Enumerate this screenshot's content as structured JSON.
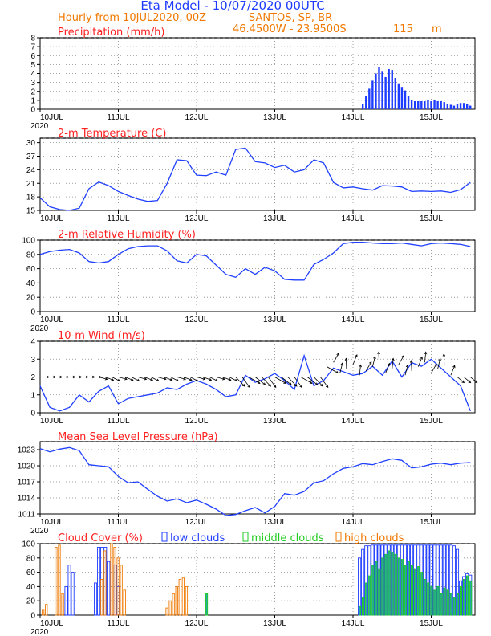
{
  "header": {
    "title": "Eta Model - 10/07/2020 00UTC",
    "subtitle_left": "Hourly from 10JUL2020, 00Z",
    "location": "SANTOS, SP, BR",
    "coords": "46.4500W - 23.9500S",
    "elevation": "115",
    "elevation_unit": "m"
  },
  "colors": {
    "title": "#1e3cff",
    "subtitle": "#f07800",
    "panel_title": "#ff2020",
    "line": "#2040ff",
    "bar_blue": "#1e3cff",
    "green": "#22cc22",
    "orange": "#f07800",
    "teal": "#009999"
  },
  "x_axis": {
    "day_labels": [
      "10JUL",
      "11JUL",
      "12JUL",
      "13JUL",
      "14JUL",
      "15JUL"
    ],
    "year_label": "2020"
  },
  "legend": {
    "cloud_low": "low clouds",
    "cloud_mid": "middle clouds",
    "cloud_high": "high clouds"
  },
  "chart_data": [
    {
      "type": "bar",
      "title": "Precipitation (mm/h)",
      "ylim": [
        0,
        8
      ],
      "yticks": [
        "0",
        "1",
        "2",
        "3",
        "4",
        "5",
        "6",
        "7",
        "8"
      ],
      "x": [
        99,
        100,
        101,
        102,
        103,
        104,
        105,
        106,
        107,
        108,
        109,
        110,
        111,
        112,
        113,
        114,
        115,
        116,
        117,
        118,
        119,
        120,
        121,
        122,
        123,
        124,
        125,
        126,
        127,
        128,
        129,
        130,
        131,
        132
      ],
      "values": [
        0.6,
        1.5,
        2.3,
        3.2,
        4.0,
        4.7,
        4.2,
        3.6,
        4.5,
        4.4,
        3.5,
        2.9,
        2.5,
        2.1,
        1.5,
        1.0,
        0.9,
        0.9,
        0.9,
        0.9,
        1.0,
        0.9,
        1.0,
        0.9,
        0.9,
        0.8,
        0.6,
        0.5,
        0.4,
        0.6,
        0.7,
        0.7,
        0.6,
        0.4
      ]
    },
    {
      "type": "line",
      "title": "2-m Temperature (C)",
      "ylim": [
        15,
        31
      ],
      "yticks": [
        "15",
        "18",
        "21",
        "24",
        "27",
        "30"
      ],
      "x": [
        0,
        3,
        6,
        9,
        12,
        15,
        18,
        21,
        24,
        27,
        30,
        33,
        36,
        39,
        42,
        45,
        48,
        51,
        54,
        57,
        60,
        63,
        66,
        69,
        72,
        75,
        78,
        81,
        84,
        87,
        90,
        93,
        96,
        99,
        102,
        105,
        108,
        111,
        114,
        117,
        120,
        123,
        126,
        129,
        132
      ],
      "values": [
        17.8,
        15.8,
        15.2,
        15.0,
        15.5,
        19.8,
        21.3,
        20.5,
        19.2,
        18.3,
        17.5,
        17.0,
        17.2,
        21.0,
        26.2,
        26.0,
        22.8,
        22.7,
        23.5,
        22.8,
        28.5,
        28.8,
        25.8,
        25.5,
        24.5,
        25.0,
        23.5,
        24.0,
        26.2,
        25.5,
        21.2,
        20.0,
        20.2,
        19.8,
        19.5,
        20.5,
        20.4,
        20.2,
        19.2,
        19.3,
        19.2,
        19.3,
        19.0,
        19.6,
        21.2
      ]
    },
    {
      "type": "line",
      "title": "2-m Relative Humidity (%)",
      "ylim": [
        0,
        100
      ],
      "yticks": [
        "0",
        "20",
        "40",
        "60",
        "80",
        "100"
      ],
      "x": [
        0,
        3,
        6,
        9,
        12,
        15,
        18,
        21,
        24,
        27,
        30,
        33,
        36,
        39,
        42,
        45,
        48,
        51,
        54,
        57,
        60,
        63,
        66,
        69,
        72,
        75,
        78,
        81,
        84,
        87,
        90,
        93,
        96,
        99,
        102,
        105,
        108,
        111,
        114,
        117,
        120,
        123,
        126,
        129,
        132
      ],
      "values": [
        80,
        84,
        86,
        87,
        82,
        70,
        68,
        70,
        80,
        88,
        91,
        92,
        92,
        85,
        71,
        68,
        80,
        78,
        65,
        52,
        48,
        60,
        52,
        62,
        57,
        45,
        44,
        44,
        66,
        73,
        82,
        95,
        97,
        97,
        96,
        95,
        95,
        96,
        94,
        92,
        95,
        96,
        95,
        94,
        91
      ]
    },
    {
      "type": "line",
      "title": "10-m Wind (m/s)",
      "ylim": [
        0,
        4
      ],
      "yticks": [
        "0",
        "1",
        "2",
        "3",
        "4"
      ],
      "x": [
        0,
        3,
        6,
        9,
        12,
        15,
        18,
        21,
        24,
        27,
        30,
        33,
        36,
        39,
        42,
        45,
        48,
        51,
        54,
        57,
        60,
        63,
        66,
        69,
        72,
        75,
        78,
        81,
        84,
        87,
        90,
        93,
        96,
        99,
        102,
        105,
        108,
        111,
        114,
        117,
        120,
        123,
        126,
        129,
        132
      ],
      "values": [
        1.5,
        0.3,
        0.1,
        0.3,
        1.0,
        0.6,
        1.2,
        1.5,
        0.5,
        0.8,
        0.9,
        1.0,
        1.1,
        1.4,
        1.3,
        1.6,
        1.8,
        1.6,
        1.3,
        0.9,
        1.0,
        2.1,
        1.7,
        1.9,
        2.2,
        1.8,
        1.3,
        3.2,
        1.5,
        1.8,
        2.5,
        2.3,
        2.1,
        2.2,
        2.6,
        2.1,
        2.9,
        2.0,
        2.8,
        2.6,
        3.0,
        2.5,
        2.0,
        1.5,
        0.1
      ]
    },
    {
      "type": "line",
      "title": "Mean Sea Level Pressure (hPa)",
      "ylim": [
        1011,
        1024.5
      ],
      "yticks": [
        "1011",
        "1014",
        "1017",
        "1020",
        "1023"
      ],
      "x": [
        0,
        3,
        6,
        9,
        12,
        15,
        18,
        21,
        24,
        27,
        30,
        33,
        36,
        39,
        42,
        45,
        48,
        51,
        54,
        57,
        60,
        63,
        66,
        69,
        72,
        75,
        78,
        81,
        84,
        87,
        90,
        93,
        96,
        99,
        102,
        105,
        108,
        111,
        114,
        117,
        120,
        123,
        126,
        129,
        132
      ],
      "values": [
        1023.2,
        1022.6,
        1023.1,
        1023.4,
        1022.8,
        1020.2,
        1020.0,
        1019.8,
        1018.0,
        1016.8,
        1017.0,
        1015.6,
        1014.3,
        1013.4,
        1013.8,
        1013.1,
        1013.6,
        1012.8,
        1011.9,
        1010.7,
        1010.9,
        1011.6,
        1012.2,
        1011.2,
        1012.4,
        1014.8,
        1014.5,
        1015.2,
        1016.8,
        1017.2,
        1018.5,
        1019.5,
        1019.8,
        1020.4,
        1020.2,
        1020.8,
        1021.3,
        1021.0,
        1019.6,
        1019.8,
        1020.3,
        1020.5,
        1020.2,
        1020.5,
        1020.6
      ]
    },
    {
      "type": "bar",
      "title": "Cloud Cover (%)",
      "ylim": [
        0,
        100
      ],
      "yticks": [
        "0",
        "20",
        "40",
        "60",
        "80",
        "100"
      ],
      "series": [
        {
          "name": "low clouds",
          "x": [
            8,
            9,
            10,
            17,
            18,
            19,
            20,
            21,
            23,
            24,
            98,
            99,
            100,
            101,
            102,
            103,
            104,
            105,
            106,
            107,
            108,
            109,
            110,
            111,
            112,
            113,
            114,
            115,
            116,
            117,
            118,
            119,
            120,
            121,
            122,
            123,
            124,
            125,
            126,
            127,
            128,
            129,
            130,
            131,
            132
          ],
          "values": [
            40,
            70,
            60,
            45,
            95,
            95,
            95,
            75,
            70,
            40,
            80,
            92,
            97,
            97,
            98,
            98,
            98,
            98,
            98,
            98,
            98,
            98,
            98,
            98,
            98,
            98,
            98,
            98,
            98,
            98,
            98,
            98,
            98,
            98,
            98,
            98,
            98,
            98,
            98,
            97,
            92,
            48,
            54,
            58,
            56
          ]
        },
        {
          "name": "middle clouds",
          "x": [
            51,
            98,
            99,
            100,
            101,
            102,
            103,
            104,
            105,
            106,
            107,
            108,
            109,
            110,
            111,
            112,
            113,
            114,
            115,
            116,
            117,
            118,
            119,
            120,
            121,
            122,
            123,
            124,
            125,
            126,
            127,
            128,
            129,
            130,
            131,
            132
          ],
          "values": [
            30,
            12,
            25,
            45,
            55,
            70,
            75,
            65,
            80,
            85,
            90,
            88,
            85,
            80,
            78,
            70,
            75,
            70,
            65,
            68,
            60,
            50,
            45,
            40,
            35,
            40,
            30,
            38,
            35,
            30,
            25,
            30,
            40,
            50,
            55,
            48
          ]
        },
        {
          "name": "high clouds",
          "x": [
            1,
            2,
            5,
            6,
            7,
            19,
            20,
            22,
            23,
            24,
            25,
            26,
            39,
            40,
            41,
            42,
            43,
            44,
            45
          ],
          "values": [
            8,
            15,
            95,
            98,
            30,
            50,
            90,
            100,
            95,
            80,
            70,
            35,
            10,
            20,
            30,
            40,
            50,
            52,
            40
          ]
        }
      ]
    }
  ]
}
